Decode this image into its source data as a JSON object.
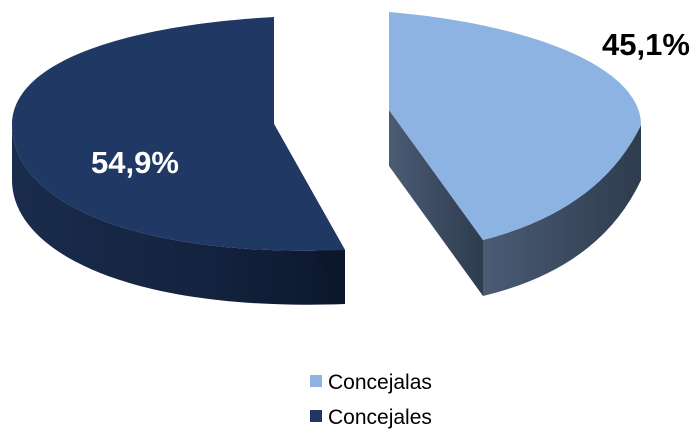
{
  "chart_data": {
    "type": "pie",
    "style": "3d-exploded",
    "series": [
      {
        "name": "Concejalas",
        "value": 45.1,
        "label": "45,1%",
        "color": "#8db3e2",
        "side_color": "#3b4a60",
        "label_color": "#000000"
      },
      {
        "name": "Concejales",
        "value": 54.9,
        "label": "54,9%",
        "color": "#1f3864",
        "side_color": "#13223e",
        "label_color": "#ffffff"
      }
    ],
    "legend": {
      "placement": "bottom",
      "items": [
        "Concejalas",
        "Concejales"
      ]
    }
  }
}
